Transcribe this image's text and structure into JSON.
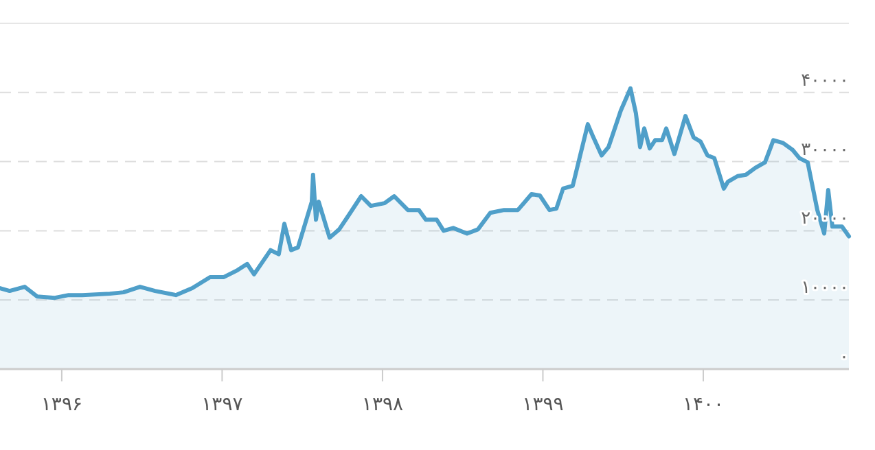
{
  "chart_data": {
    "type": "area",
    "x": [
      1395.615,
      1395.675,
      1395.769,
      1395.846,
      1395.957,
      1396.043,
      1396.128,
      1396.3,
      1396.385,
      1396.488,
      1396.582,
      1396.711,
      1396.814,
      1396.925,
      1397.011,
      1397.096,
      1397.156,
      1397.199,
      1397.302,
      1397.353,
      1397.388,
      1397.43,
      1397.473,
      1397.559,
      1397.567,
      1397.585,
      1397.602,
      1397.67,
      1397.73,
      1397.782,
      1397.867,
      1397.927,
      1398.013,
      1398.073,
      1398.158,
      1398.227,
      1398.27,
      1398.338,
      1398.381,
      1398.441,
      1398.527,
      1398.595,
      1398.672,
      1398.758,
      1398.844,
      1398.929,
      1398.981,
      1399.041,
      1399.084,
      1399.126,
      1399.186,
      1399.28,
      1399.315,
      1399.366,
      1399.409,
      1399.486,
      1399.546,
      1399.58,
      1399.606,
      1399.632,
      1399.666,
      1399.7,
      1399.743,
      1399.769,
      1399.82,
      1399.889,
      1399.94,
      1399.983,
      1400.026,
      1400.069,
      1400.128,
      1400.154,
      1400.214,
      1400.266,
      1400.325,
      1400.385,
      1400.437,
      1400.497,
      1400.557,
      1400.6,
      1400.651,
      1400.711,
      1400.754,
      1400.779,
      1400.805,
      1400.865,
      1400.908
    ],
    "series": [
      {
        "color": "#4f9fc9",
        "values": [
          11700,
          11300,
          11900,
          10500,
          10300,
          10700,
          10700,
          10900,
          11100,
          11900,
          11300,
          10700,
          11700,
          13300,
          13300,
          14300,
          15200,
          13700,
          17200,
          16600,
          21000,
          17200,
          17600,
          24200,
          28100,
          21600,
          24200,
          19000,
          20200,
          22000,
          25000,
          23600,
          24000,
          25000,
          23000,
          23000,
          21600,
          21600,
          20000,
          20400,
          19600,
          20200,
          22600,
          23000,
          23000,
          25300,
          25100,
          23000,
          23200,
          26100,
          26500,
          35400,
          33500,
          30900,
          32100,
          37400,
          40600,
          37000,
          32100,
          34800,
          31900,
          33100,
          33100,
          34800,
          31100,
          36600,
          33500,
          32900,
          30900,
          30500,
          26100,
          27100,
          27900,
          28100,
          29100,
          29900,
          33100,
          32700,
          31700,
          30500,
          29900,
          23000,
          19600,
          25900,
          20600,
          20600,
          19200
        ]
      }
    ],
    "xlim": [
      1395.615,
      1400.908
    ],
    "xticks": [
      {
        "value": 1396,
        "label": "۱۳۹۶"
      },
      {
        "value": 1397,
        "label": "۱۳۹۷"
      },
      {
        "value": 1398,
        "label": "۱۳۹۸"
      },
      {
        "value": 1399,
        "label": "۱۳۹۹"
      },
      {
        "value": 1400,
        "label": "۱۴۰۰"
      }
    ],
    "ylim": [
      0,
      50000
    ],
    "yticks": [
      {
        "value": 0,
        "label": "۰"
      },
      {
        "value": 10000,
        "label": "۱۰۰۰۰"
      },
      {
        "value": 20000,
        "label": "۲۰۰۰۰"
      },
      {
        "value": 30000,
        "label": "۳۰۰۰۰"
      },
      {
        "value": 40000,
        "label": "۴۰۰۰۰"
      }
    ],
    "grid": "y"
  }
}
